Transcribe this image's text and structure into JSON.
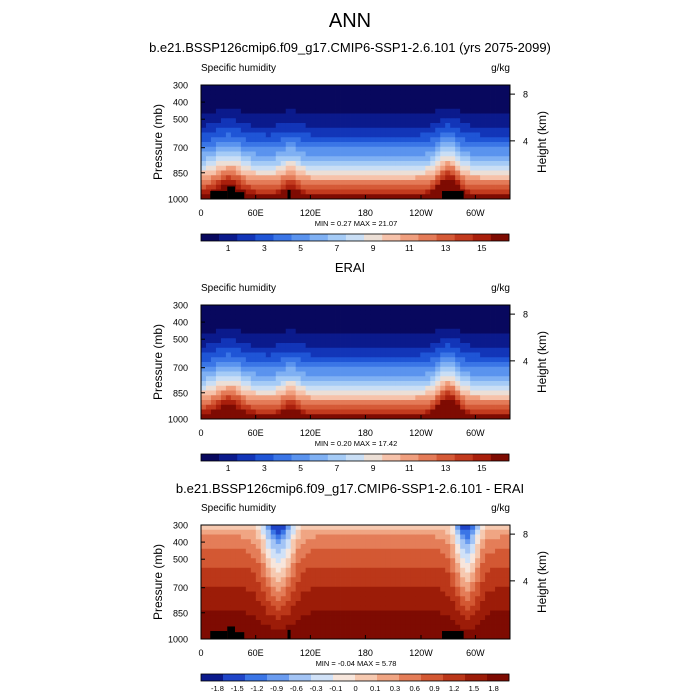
{
  "figure": {
    "title": "ANN"
  },
  "colors": {
    "seq": [
      "#08085e",
      "#0b1a8c",
      "#1235b8",
      "#1f55d6",
      "#3a75e6",
      "#5a93ee",
      "#7fb0f3",
      "#a5cbf6",
      "#c9def5",
      "#ecdfd6",
      "#f6c2aa",
      "#f09f7e",
      "#e47b58",
      "#d55a37",
      "#c23a1e",
      "#a91f0c",
      "#7e0b02"
    ],
    "div": [
      "#0b1a8c",
      "#1f45c8",
      "#3a75e6",
      "#6a9cf0",
      "#a3c4f5",
      "#d0e1f7",
      "#f7e6dc",
      "#f6c9b0",
      "#f0a583",
      "#e47d58",
      "#d35833",
      "#bb3719",
      "#9c1c08",
      "#7e0b02"
    ],
    "terrain": "#000000"
  },
  "chart_data": [
    {
      "type": "heatmap",
      "title": "b.e21.BSSP126cmip6.f09_g17.CMIP6-SSP1-2.6.101 (yrs 2075-2099)",
      "left_label": "Specific humidity",
      "right_label": "g/kg",
      "xlabel": "",
      "ylabel": "Pressure (mb)",
      "ylabel_right": "Height (km)",
      "xticks": [
        "0",
        "60E",
        "120E",
        "180",
        "120W",
        "60W"
      ],
      "yticks": [
        "300",
        "400",
        "500",
        "700",
        "850",
        "1000"
      ],
      "yticks_right": [
        "8",
        "4"
      ],
      "min": 0.27,
      "max": 21.07,
      "minmax_text": "MIN =   0.27  MAX =  21.07",
      "colorbar_labels": [
        "1",
        "3",
        "5",
        "7",
        "9",
        "11",
        "13",
        "15"
      ],
      "palette": "seq",
      "terrain": true
    },
    {
      "type": "heatmap",
      "title": "ERAI",
      "left_label": "Specific humidity",
      "right_label": "g/kg",
      "xlabel": "",
      "ylabel": "Pressure (mb)",
      "ylabel_right": "Height (km)",
      "xticks": [
        "0",
        "60E",
        "120E",
        "180",
        "120W",
        "60W"
      ],
      "yticks": [
        "300",
        "400",
        "500",
        "700",
        "850",
        "1000"
      ],
      "yticks_right": [
        "8",
        "4"
      ],
      "min": 0.2,
      "max": 17.42,
      "minmax_text": "MIN =   0.20  MAX =  17.42",
      "colorbar_labels": [
        "1",
        "3",
        "5",
        "7",
        "9",
        "11",
        "13",
        "15"
      ],
      "palette": "seq",
      "terrain": false
    },
    {
      "type": "heatmap",
      "title": "b.e21.BSSP126cmip6.f09_g17.CMIP6-SSP1-2.6.101 - ERAI",
      "left_label": "Specific humidity",
      "right_label": "g/kg",
      "xlabel": "",
      "ylabel": "Pressure (mb)",
      "ylabel_right": "Height (km)",
      "xticks": [
        "0",
        "60E",
        "120E",
        "180",
        "120W",
        "60W"
      ],
      "yticks": [
        "300",
        "400",
        "500",
        "700",
        "850",
        "1000"
      ],
      "yticks_right": [
        "8",
        "4"
      ],
      "min": -0.04,
      "max": 5.78,
      "minmax_text": "MIN =  -0.04  MAX =   5.78",
      "colorbar_labels": [
        "-1.8",
        "-1.5",
        "-1.2",
        "-0.9",
        "-0.6",
        "-0.3",
        "-0.1",
        "0",
        "0.1",
        "0.3",
        "0.6",
        "0.9",
        "1.2",
        "1.5",
        "1.8"
      ],
      "palette": "div",
      "terrain": true
    }
  ]
}
